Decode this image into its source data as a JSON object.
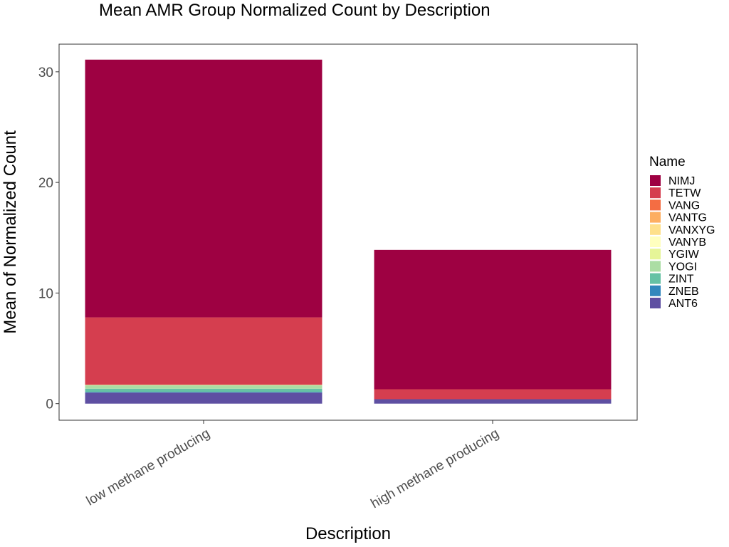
{
  "chart_data": {
    "type": "bar",
    "stacked": true,
    "title": "Mean AMR Group Normalized Count by Description",
    "xlabel": "Description",
    "ylabel": "Mean of Normalized Count",
    "ylim": [
      -1.5,
      32.5
    ],
    "yticks": [
      0,
      10,
      20,
      30
    ],
    "grid": false,
    "categories": [
      "low methane producing",
      "high methane producing"
    ],
    "legend": {
      "title": "Name",
      "placement": "right",
      "items": [
        {
          "name": "NIMJ",
          "color": "#9e0142"
        },
        {
          "name": "TETW",
          "color": "#d53e4f"
        },
        {
          "name": "VANG",
          "color": "#f46d43"
        },
        {
          "name": "VANTG",
          "color": "#fdae61"
        },
        {
          "name": "VANXYG",
          "color": "#fee08b"
        },
        {
          "name": "VANYB",
          "color": "#ffffbf"
        },
        {
          "name": "YGIW",
          "color": "#e6f598"
        },
        {
          "name": "YOGI",
          "color": "#abdda4"
        },
        {
          "name": "ZINT",
          "color": "#66c2a5"
        },
        {
          "name": "ZNEB",
          "color": "#3288bd"
        },
        {
          "name": "ANT6",
          "color": "#5e4fa2"
        }
      ]
    },
    "series": [
      {
        "name": "ANT6",
        "color": "#5e4fa2",
        "values": [
          1.0,
          0.4
        ]
      },
      {
        "name": "ZNEB",
        "color": "#3288bd",
        "values": [
          0.05,
          0.0
        ]
      },
      {
        "name": "ZINT",
        "color": "#66c2a5",
        "values": [
          0.3,
          0.0
        ]
      },
      {
        "name": "YOGI",
        "color": "#abdda4",
        "values": [
          0.3,
          0.0
        ]
      },
      {
        "name": "YGIW",
        "color": "#e6f598",
        "values": [
          0.05,
          0.0
        ]
      },
      {
        "name": "VANYB",
        "color": "#ffffbf",
        "values": [
          0.0,
          0.0
        ]
      },
      {
        "name": "VANXYG",
        "color": "#fee08b",
        "values": [
          0.0,
          0.0
        ]
      },
      {
        "name": "VANTG",
        "color": "#fdae61",
        "values": [
          0.0,
          0.0
        ]
      },
      {
        "name": "VANG",
        "color": "#f46d43",
        "values": [
          0.0,
          0.0
        ]
      },
      {
        "name": "TETW",
        "color": "#d53e4f",
        "values": [
          6.1,
          0.9
        ]
      },
      {
        "name": "NIMJ",
        "color": "#9e0142",
        "values": [
          23.3,
          12.6
        ]
      }
    ]
  }
}
